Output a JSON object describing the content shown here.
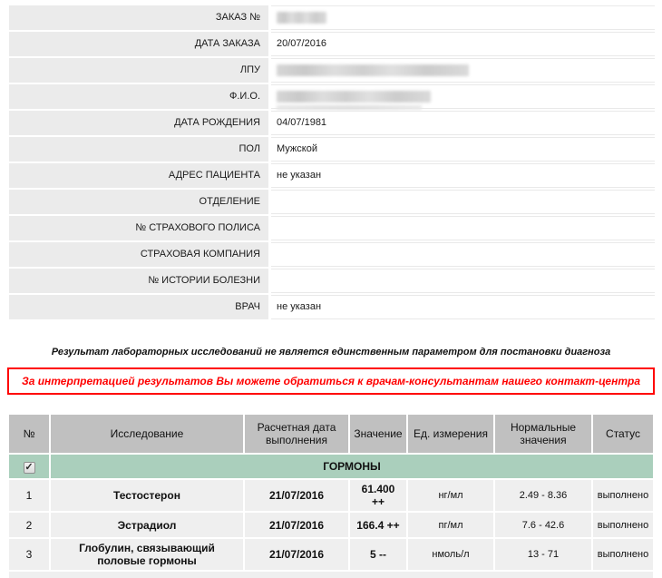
{
  "form": {
    "rows": [
      {
        "label": "ЗАКАЗ №",
        "value": "",
        "redacted": true
      },
      {
        "label": "ДАТА ЗАКАЗА",
        "value": "20/07/2016",
        "redacted": false
      },
      {
        "label": "ЛПУ",
        "value": "",
        "redacted": true
      },
      {
        "label": "Ф.И.О.",
        "value": "",
        "redacted": true
      },
      {
        "label": "ДАТА РОЖДЕНИЯ",
        "value": "04/07/1981",
        "redacted": false
      },
      {
        "label": "ПОЛ",
        "value": "Мужской",
        "redacted": false
      },
      {
        "label": "АДРЕС ПАЦИЕНТА",
        "value": "не указан",
        "redacted": false
      },
      {
        "label": "ОТДЕЛЕНИЕ",
        "value": "",
        "redacted": false
      },
      {
        "label": "№ СТРАХОВОГО ПОЛИСА",
        "value": "",
        "redacted": false
      },
      {
        "label": "СТРАХОВАЯ КОМПАНИЯ",
        "value": "",
        "redacted": false
      },
      {
        "label": "№ ИСТОРИИ БОЛЕЗНИ",
        "value": "",
        "redacted": false
      },
      {
        "label": "ВРАЧ",
        "value": "не указан",
        "redacted": false
      }
    ]
  },
  "notices": {
    "disclaimer": "Результат лабораторных исследований не является единственным параметром для постановки диагноза",
    "contact": "За интерпретацией результатов Вы можете обратиться к врачам-консультантам нашего контакт-центра"
  },
  "results_table": {
    "headers": [
      "№",
      "Исследование",
      "Расчетная дата выполнения",
      "Значение",
      "Ед. измерения",
      "Нормальные значения",
      "Статус"
    ],
    "group": {
      "label": "ГОРМОНЫ",
      "checked": true
    },
    "rows": [
      {
        "num": "1",
        "test": "Тестостерон",
        "date": "21/07/2016",
        "value": "61.400 ++",
        "unit": "нг/мл",
        "range": "2.49 - 8.36",
        "status": "выполнено"
      },
      {
        "num": "2",
        "test": "Эстрадиол",
        "date": "21/07/2016",
        "value": "166.4 ++",
        "unit": "пг/мл",
        "range": "7.6 - 42.6",
        "status": "выполнено"
      },
      {
        "num": "3",
        "test": "Глобулин, связывающий половые гормоны",
        "date": "21/07/2016",
        "value": "5 --",
        "unit": "нмоль/л",
        "range": "13 - 71",
        "status": "выполнено"
      }
    ]
  },
  "icons": {
    "checkbox_check": "✓"
  },
  "colors": {
    "accent_red": "#ff0000",
    "group_green": "#aacfbc",
    "header_gray": "#c0c0c0",
    "row_gray": "#efefef",
    "label_gray": "#ebebeb"
  }
}
